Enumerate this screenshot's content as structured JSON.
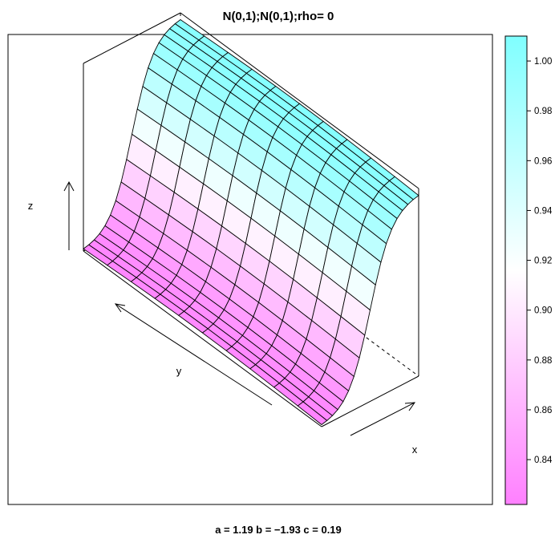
{
  "chart_data": {
    "type": "surface",
    "title": "N(0,1);N(0,1);rho= 0",
    "subtitle": "a = 1.19 b = −1.93 c = 0.19",
    "xlabel": "x",
    "ylabel": "y",
    "zlabel": "z",
    "colorkey": {
      "range": [
        0.822,
        1.01
      ],
      "ticks": [
        "0.84",
        "0.86",
        "0.88",
        "0.90",
        "0.92",
        "0.94",
        "0.96",
        "0.98",
        "1.00"
      ],
      "low_color": "#ff80ff",
      "high_color": "#80ffff"
    },
    "surface": {
      "x_grid_lines": 18,
      "y_grid_lines": 10,
      "z_at_x_low": 0.822,
      "z_at_x_high": 1.005,
      "z_shape": "logistic rise along x, nearly constant along y"
    },
    "wireframe": "3D bounding box, hidden edges dashed",
    "grid": false
  }
}
